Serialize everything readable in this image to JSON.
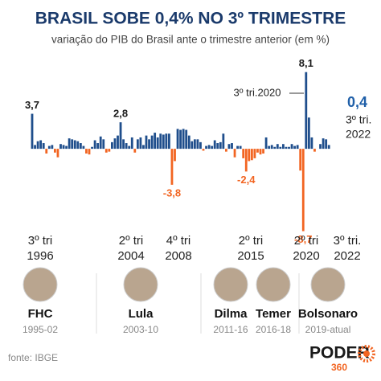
{
  "chart_data": {
    "type": "bar",
    "title": "BRASIL SOBE 0,4% NO 3º TRIMESTRE",
    "subtitle": "variação do PIB do Brasil ante o trimestre anterior (em %)",
    "values": [
      3.7,
      0.4,
      0.8,
      0.9,
      0.6,
      -0.5,
      0.3,
      0.4,
      -0.4,
      -0.9,
      0.5,
      0.4,
      0.3,
      1.1,
      1.0,
      0.9,
      0.8,
      0.6,
      0.3,
      -0.5,
      -0.6,
      0.2,
      0.9,
      0.6,
      1.3,
      1.0,
      -0.4,
      -0.3,
      0.7,
      1.1,
      1.4,
      2.8,
      1.0,
      0.6,
      0.3,
      1.2,
      -0.4,
      1.0,
      1.2,
      0.4,
      1.4,
      1.0,
      1.4,
      1.7,
      1.2,
      1.6,
      1.5,
      1.6,
      1.6,
      -3.8,
      -1.3,
      2.1,
      2.0,
      2.1,
      2.0,
      1.4,
      0.8,
      1.0,
      1.0,
      0.7,
      -0.2,
      0.3,
      0.4,
      0.3,
      0.9,
      0.6,
      0.7,
      1.6,
      -0.3,
      0.5,
      0.6,
      -0.9,
      0.3,
      0.3,
      -1.0,
      -2.4,
      -1.3,
      -1.2,
      -1.0,
      -0.4,
      -0.6,
      -0.5,
      1.2,
      0.3,
      0.4,
      0.2,
      0.5,
      0.2,
      0.5,
      0.2,
      0.2,
      0.5,
      0.3,
      0.4,
      -2.3,
      -8.7,
      8.1,
      3.3,
      1.2,
      -0.3,
      0.0,
      0.5,
      1.1,
      1.0,
      0.4
    ],
    "value_labels": [
      "3,7",
      null,
      null,
      null,
      null,
      null,
      null,
      null,
      null,
      null,
      null,
      null,
      null,
      null,
      null,
      null,
      null,
      null,
      null,
      null,
      null,
      null,
      null,
      null,
      null,
      null,
      null,
      null,
      null,
      null,
      null,
      "2,8",
      null,
      null,
      null,
      null,
      null,
      null,
      null,
      null,
      null,
      null,
      null,
      null,
      null,
      null,
      null,
      null,
      null,
      "-3,8",
      null,
      null,
      null,
      null,
      null,
      null,
      null,
      null,
      null,
      null,
      null,
      null,
      null,
      null,
      null,
      null,
      null,
      null,
      null,
      null,
      null,
      null,
      null,
      null,
      null,
      "-2,4",
      null,
      null,
      null,
      null,
      null,
      null,
      null,
      null,
      null,
      null,
      null,
      null,
      null,
      null,
      null,
      null,
      null,
      null,
      null,
      "-8,7",
      "8,1",
      null,
      null,
      null,
      null,
      null,
      null,
      null,
      "0,4"
    ],
    "positive_color": "#1f4e8c",
    "negative_color": "#f26522",
    "ylim": [
      -9.5,
      8.5
    ],
    "annotations": [
      "3º tri.2020",
      "3º tri.",
      "2022"
    ],
    "timeline": [
      [
        "3º tri",
        "1996"
      ],
      [
        "2º tri",
        "2004"
      ],
      [
        "4º tri",
        "2008"
      ],
      [
        "2º tri",
        "2015"
      ],
      [
        "2º tri",
        "2020"
      ],
      [
        "3º tri.",
        "2022"
      ]
    ],
    "presidents": [
      {
        "name": "FHC",
        "term": "1995-02"
      },
      {
        "name": "Lula",
        "term": "2003-10"
      },
      {
        "name": "Dilma",
        "term": "2011-16"
      },
      {
        "name": "Temer",
        "term": "2016-18"
      },
      {
        "name": "Bolsonaro",
        "term": "2019-atual"
      }
    ],
    "source": "fonte: IBGE",
    "brand": [
      "PODER",
      "360"
    ]
  }
}
